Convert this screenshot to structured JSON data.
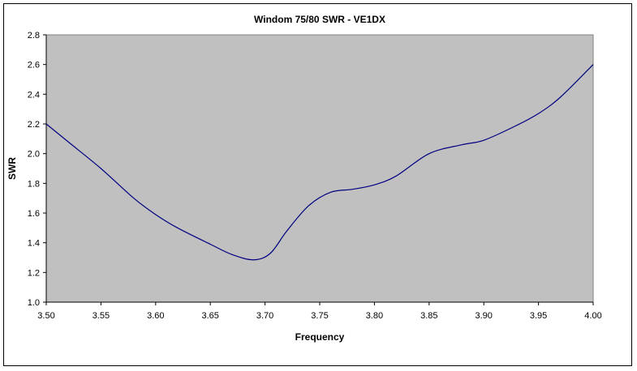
{
  "chart_data": {
    "type": "line",
    "title": "Windom 75/80 SWR - VE1DX",
    "xlabel": "Frequency",
    "ylabel": "SWR",
    "xlim": [
      3.5,
      4.0
    ],
    "ylim": [
      1.0,
      2.8
    ],
    "x_ticks": [
      "3.50",
      "3.55",
      "3.60",
      "3.65",
      "3.70",
      "3.75",
      "3.80",
      "3.85",
      "3.90",
      "3.95",
      "4.00"
    ],
    "y_ticks": [
      "1.0",
      "1.2",
      "1.4",
      "1.6",
      "1.8",
      "2.0",
      "2.2",
      "2.4",
      "2.6",
      "2.8"
    ],
    "grid": false,
    "legend": "none",
    "colors": {
      "plot_bg": "#c0c0c0",
      "line": "#000080",
      "frame": "#000000"
    },
    "series": [
      {
        "x": [
          3.5,
          3.52,
          3.55,
          3.58,
          3.6,
          3.62,
          3.65,
          3.67,
          3.69,
          3.705,
          3.72,
          3.74,
          3.76,
          3.78,
          3.8,
          3.82,
          3.85,
          3.88,
          3.9,
          3.93,
          3.95,
          3.97,
          4.0
        ],
        "y": [
          2.2,
          2.08,
          1.9,
          1.7,
          1.59,
          1.5,
          1.39,
          1.32,
          1.285,
          1.33,
          1.48,
          1.65,
          1.74,
          1.76,
          1.79,
          1.85,
          2.0,
          2.06,
          2.09,
          2.19,
          2.27,
          2.38,
          2.6
        ]
      }
    ]
  }
}
